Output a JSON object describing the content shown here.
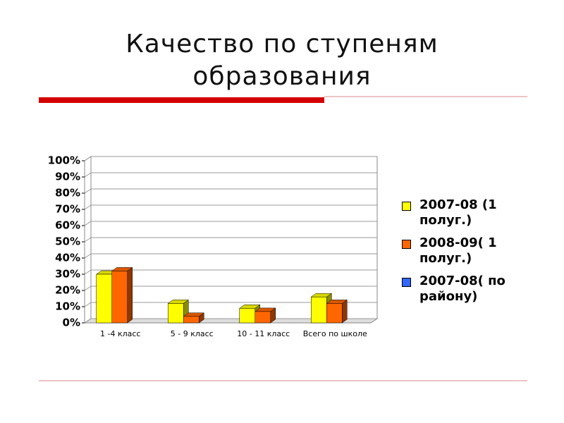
{
  "chart_data": {
    "type": "bar3d",
    "title": "Качество по ступеням образования",
    "categories": [
      "1 -4 класс",
      "5 - 9 класс",
      "10 - 11 класс",
      "Всего по школе"
    ],
    "series": [
      {
        "name": "2007-08 (1 полуг.)",
        "color": "#ffff00",
        "values": [
          30,
          12,
          9,
          16
        ]
      },
      {
        "name": "2008-09( 1 полуг.)",
        "color": "#ff6600",
        "values": [
          32,
          4,
          7,
          12
        ]
      },
      {
        "name": "2007-08( по району)",
        "color": "#3366ff",
        "values": [
          null,
          null,
          null,
          null
        ]
      }
    ],
    "ylim": [
      0,
      100
    ],
    "yticks": [
      {
        "value": 0,
        "label": "0%"
      },
      {
        "value": 10,
        "label": "10%"
      },
      {
        "value": 20,
        "label": "20%"
      },
      {
        "value": 30,
        "label": "30%"
      },
      {
        "value": 40,
        "label": "40%"
      },
      {
        "value": 50,
        "label": "50%"
      },
      {
        "value": 60,
        "label": "60%"
      },
      {
        "value": 70,
        "label": "70%"
      },
      {
        "value": 80,
        "label": "80%"
      },
      {
        "value": 90,
        "label": "90%"
      },
      {
        "value": 100,
        "label": "100%"
      }
    ],
    "grid": true,
    "legend": "right"
  }
}
